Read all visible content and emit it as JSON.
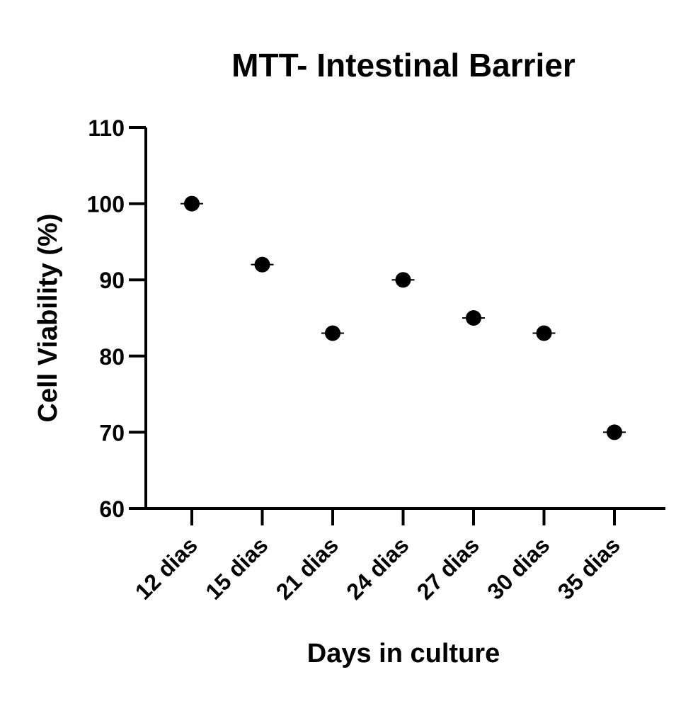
{
  "chart_data": {
    "type": "scatter",
    "title": "MTT- Intestinal Barrier",
    "xlabel": "Days in culture",
    "ylabel": "Cell Viability (%)",
    "categories": [
      "12 dias",
      "15 dias",
      "21 dias",
      "24 dias",
      "27 dias",
      "30 dias",
      "35 dias"
    ],
    "values": [
      100,
      92,
      83,
      90,
      85,
      83,
      70
    ],
    "ylim": [
      60,
      110
    ],
    "yticks": [
      60,
      70,
      80,
      90,
      100,
      110
    ],
    "marker_color": "#000000",
    "grid": false,
    "legend": "none"
  }
}
